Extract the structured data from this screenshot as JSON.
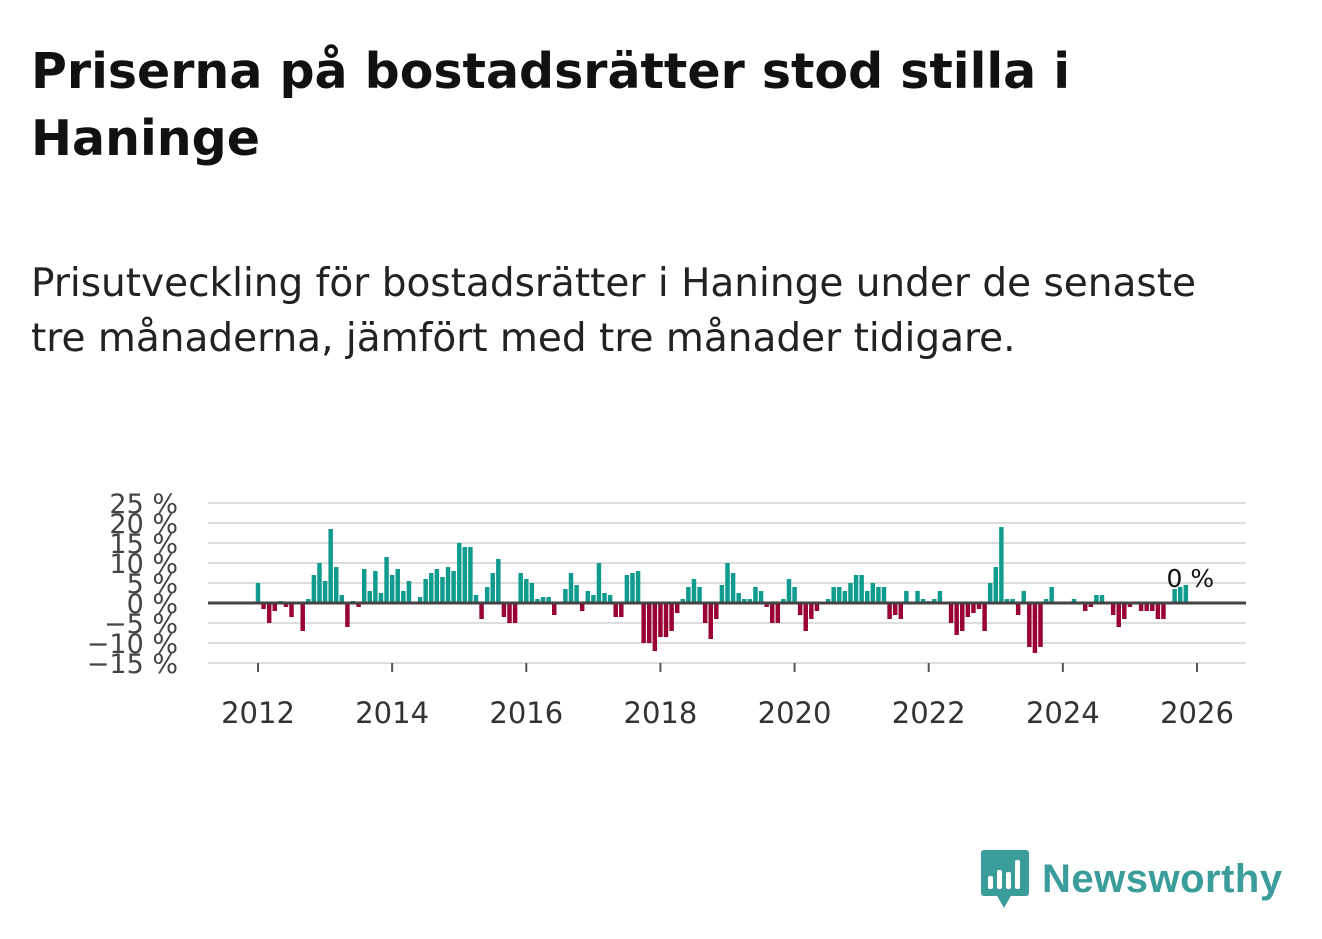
{
  "header": {
    "title": "Priserna på bostadsrätter stod stilla i Haninge",
    "subtitle": "Prisutveckling för bostadsrätter i Haninge under de senaste tre månaderna, jämfört med tre månader tidigare."
  },
  "brand": {
    "name": "Newsworthy"
  },
  "colors": {
    "positive": "#0f9b8e",
    "negative": "#990033",
    "grid": "#dddddd",
    "zero_line": "#444444",
    "brand": "#3a9d9b"
  },
  "chart_data": {
    "type": "bar",
    "title": "Priserna på bostadsrätter stod stilla i Haninge",
    "xlabel": "",
    "ylabel": "",
    "ylim": [
      -15,
      25
    ],
    "y_ticks": [
      -15,
      -10,
      -5,
      0,
      5,
      10,
      15,
      20,
      25
    ],
    "y_tick_labels": [
      "−15 %",
      "−10 %",
      "−5 %",
      "0 %",
      "5 %",
      "10 %",
      "15 %",
      "20 %",
      "25 %"
    ],
    "x_ticks": [
      2012,
      2014,
      2016,
      2018,
      2020,
      2022,
      2024,
      2026
    ],
    "x_tick_labels": [
      "2012",
      "2014",
      "2016",
      "2018",
      "2020",
      "2022",
      "2024",
      "2026"
    ],
    "start": [
      2012,
      1
    ],
    "frequency": "monthly",
    "annotation": {
      "text": "0 %",
      "year": 2025.9,
      "value": 0
    },
    "values": [
      5,
      -1.5,
      -5,
      -2,
      0.5,
      -1,
      -3.5,
      0,
      -7,
      1,
      7,
      10,
      5.5,
      18.5,
      9,
      2,
      -6,
      0.5,
      -1,
      8.5,
      3,
      8,
      2.5,
      11.5,
      7,
      8.5,
      3,
      5.5,
      0,
      1.5,
      6,
      7.5,
      8.5,
      6.5,
      9,
      8,
      15,
      14,
      14,
      2,
      -4,
      4,
      7.5,
      11,
      -3.5,
      -5,
      -5,
      7.5,
      6,
      5,
      1,
      1.5,
      1.5,
      -3,
      0,
      3.5,
      7.5,
      4.5,
      -2,
      3,
      2,
      10,
      2.5,
      2,
      -3.5,
      -3.5,
      7,
      7.5,
      8,
      -10,
      -10,
      -12,
      -8.5,
      -8.5,
      -7,
      -2.5,
      1,
      4,
      6,
      4,
      -5,
      -9,
      -4,
      4.5,
      10,
      7.5,
      2.5,
      1,
      1,
      4,
      3,
      -1,
      -5,
      -5,
      1,
      6,
      4,
      -3,
      -7,
      -4,
      -2,
      0,
      1,
      4,
      4,
      3,
      5,
      7,
      7,
      3,
      5,
      4,
      4,
      -4,
      -3,
      -4,
      3,
      0,
      3,
      1,
      0.5,
      1,
      3,
      0,
      -5,
      -8,
      -7,
      -3.5,
      -2.5,
      -1.5,
      -7,
      5,
      9,
      19,
      1,
      1,
      -3,
      3,
      -11,
      -12.5,
      -11,
      1,
      4,
      0,
      0,
      0,
      1,
      0,
      -2,
      -1,
      2,
      2,
      0,
      -3,
      -6,
      -4,
      -1,
      0,
      -2,
      -2,
      -2,
      -4,
      -4,
      0,
      3.5,
      4,
      4.5,
      0
    ]
  }
}
